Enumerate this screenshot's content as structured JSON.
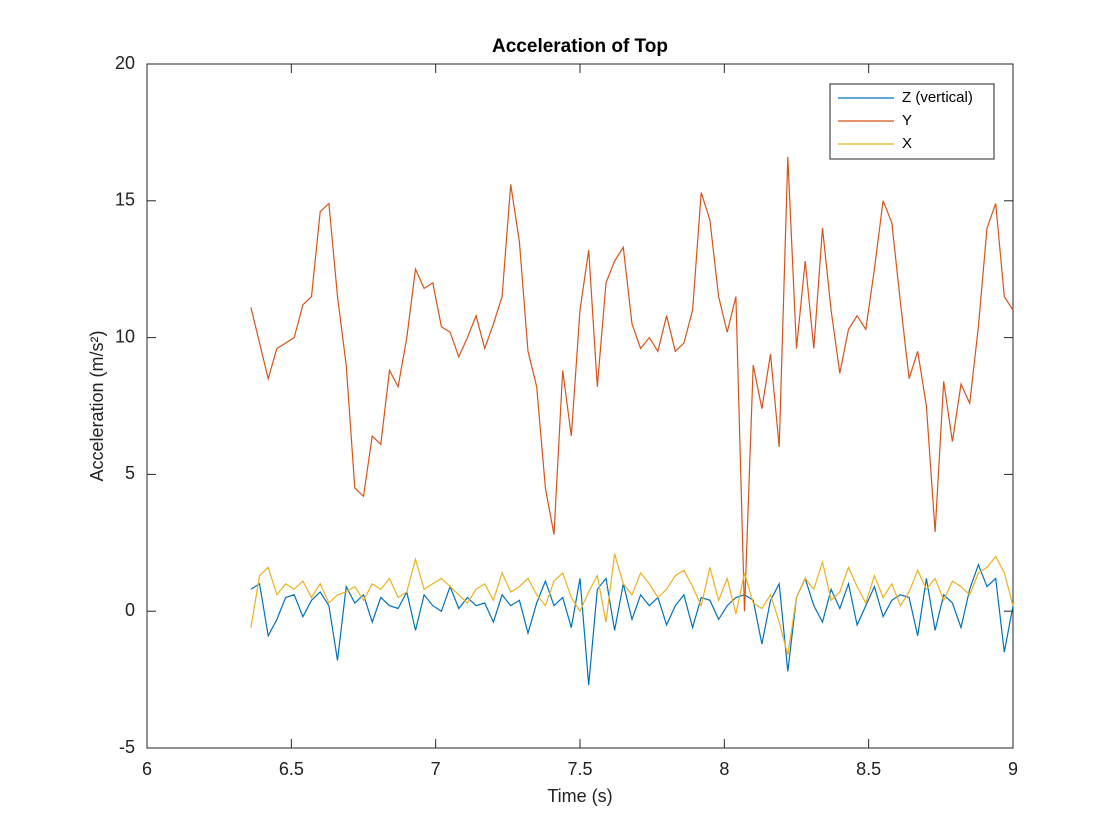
{
  "chart_data": {
    "type": "line",
    "title": "Acceleration of Top",
    "x_label": "Time (s)",
    "y_label": "Acceleration (m/s²)",
    "x": [
      6.36,
      6.39,
      6.42,
      6.45,
      6.48,
      6.51,
      6.54,
      6.57,
      6.6,
      6.63,
      6.66,
      6.69,
      6.72,
      6.75,
      6.78,
      6.81,
      6.84,
      6.87,
      6.9,
      6.93,
      6.96,
      6.99,
      7.02,
      7.05,
      7.08,
      7.11,
      7.14,
      7.17,
      7.2,
      7.23,
      7.26,
      7.29,
      7.32,
      7.35,
      7.38,
      7.41,
      7.44,
      7.47,
      7.5,
      7.53,
      7.56,
      7.59,
      7.62,
      7.65,
      7.68,
      7.71,
      7.74,
      7.77,
      7.8,
      7.83,
      7.86,
      7.89,
      7.92,
      7.95,
      7.98,
      8.01,
      8.04,
      8.07,
      8.1,
      8.13,
      8.16,
      8.19,
      8.22,
      8.25,
      8.28,
      8.31,
      8.34,
      8.37,
      8.4,
      8.43,
      8.46,
      8.49,
      8.52,
      8.55,
      8.58,
      8.61,
      8.64,
      8.67,
      8.7,
      8.73,
      8.76,
      8.79,
      8.82,
      8.85,
      8.88,
      8.91,
      8.94,
      8.97,
      9.0
    ],
    "series": [
      {
        "name": "Z (vertical)",
        "color": "#0072BD",
        "values": [
          0.8,
          1.0,
          -0.9,
          -0.3,
          0.5,
          0.6,
          -0.2,
          0.4,
          0.7,
          0.2,
          -1.8,
          0.9,
          0.3,
          0.6,
          -0.4,
          0.5,
          0.2,
          0.1,
          0.7,
          -0.7,
          0.6,
          0.2,
          0.0,
          0.9,
          0.1,
          0.5,
          0.2,
          0.3,
          -0.4,
          0.6,
          0.2,
          0.4,
          -0.8,
          0.3,
          1.1,
          0.2,
          0.5,
          -0.6,
          1.2,
          -2.7,
          0.8,
          1.2,
          -0.7,
          1.0,
          -0.3,
          0.6,
          0.2,
          0.5,
          -0.5,
          0.2,
          0.6,
          -0.6,
          0.5,
          0.4,
          -0.3,
          0.2,
          0.5,
          0.6,
          0.4,
          -1.2,
          0.4,
          1.0,
          -2.2,
          0.5,
          1.2,
          0.2,
          -0.4,
          0.8,
          0.1,
          1.0,
          -0.5,
          0.2,
          0.9,
          -0.2,
          0.4,
          0.6,
          0.5,
          -0.9,
          1.2,
          -0.7,
          0.6,
          0.3,
          -0.6,
          0.8,
          1.7,
          0.9,
          1.2,
          -1.5,
          0.2
        ]
      },
      {
        "name": "Y",
        "color": "#D95319",
        "values": [
          11.1,
          9.8,
          8.5,
          9.6,
          9.8,
          10.0,
          11.2,
          11.5,
          14.6,
          14.9,
          11.5,
          9.0,
          4.5,
          4.2,
          6.4,
          6.1,
          8.8,
          8.2,
          10.0,
          12.5,
          11.8,
          12.0,
          10.4,
          10.2,
          9.3,
          10.0,
          10.8,
          9.6,
          10.5,
          11.5,
          15.6,
          13.5,
          9.5,
          8.2,
          4.5,
          2.8,
          8.8,
          6.4,
          11.0,
          13.2,
          8.2,
          12.0,
          12.8,
          13.3,
          10.5,
          9.6,
          10.0,
          9.5,
          10.8,
          9.5,
          9.8,
          11.0,
          15.3,
          14.3,
          11.5,
          10.2,
          11.5,
          0.0,
          9.0,
          7.4,
          9.4,
          6.0,
          16.6,
          9.6,
          12.8,
          9.6,
          14.0,
          11.0,
          8.7,
          10.3,
          10.8,
          10.3,
          12.5,
          15.0,
          14.2,
          11.3,
          8.5,
          9.5,
          7.5,
          2.9,
          8.4,
          6.2,
          8.3,
          7.6,
          10.4,
          14.0,
          14.9,
          11.5,
          11.0
        ]
      },
      {
        "name": "X",
        "color": "#EDB120",
        "values": [
          -0.6,
          1.3,
          1.6,
          0.6,
          1.0,
          0.8,
          1.1,
          0.5,
          1.0,
          0.3,
          0.6,
          0.7,
          0.9,
          0.4,
          1.0,
          0.8,
          1.2,
          0.5,
          0.7,
          1.9,
          0.8,
          1.0,
          1.2,
          0.9,
          0.6,
          0.3,
          0.8,
          1.0,
          0.4,
          1.4,
          0.7,
          0.9,
          1.2,
          0.6,
          0.2,
          1.1,
          1.4,
          0.5,
          0.0,
          0.7,
          1.3,
          -0.4,
          2.1,
          1.0,
          0.6,
          1.4,
          1.0,
          0.5,
          0.8,
          1.3,
          1.5,
          0.9,
          0.2,
          1.6,
          0.4,
          1.2,
          -0.1,
          1.4,
          0.3,
          0.1,
          0.6,
          -0.4,
          -1.6,
          0.5,
          1.2,
          0.8,
          1.8,
          0.4,
          0.7,
          1.6,
          0.9,
          0.3,
          1.3,
          0.5,
          1.0,
          0.2,
          0.7,
          1.5,
          0.8,
          1.2,
          0.4,
          1.1,
          0.9,
          0.6,
          1.4,
          1.6,
          2.0,
          1.4,
          0.2
        ]
      }
    ],
    "xlim": [
      6,
      9
    ],
    "xticks": [
      6,
      6.5,
      7,
      7.5,
      8,
      8.5,
      9
    ],
    "ylim": [
      -5,
      20
    ],
    "yticks": [
      -5,
      0,
      5,
      10,
      15,
      20
    ],
    "grid": false,
    "legend": "top-right"
  }
}
